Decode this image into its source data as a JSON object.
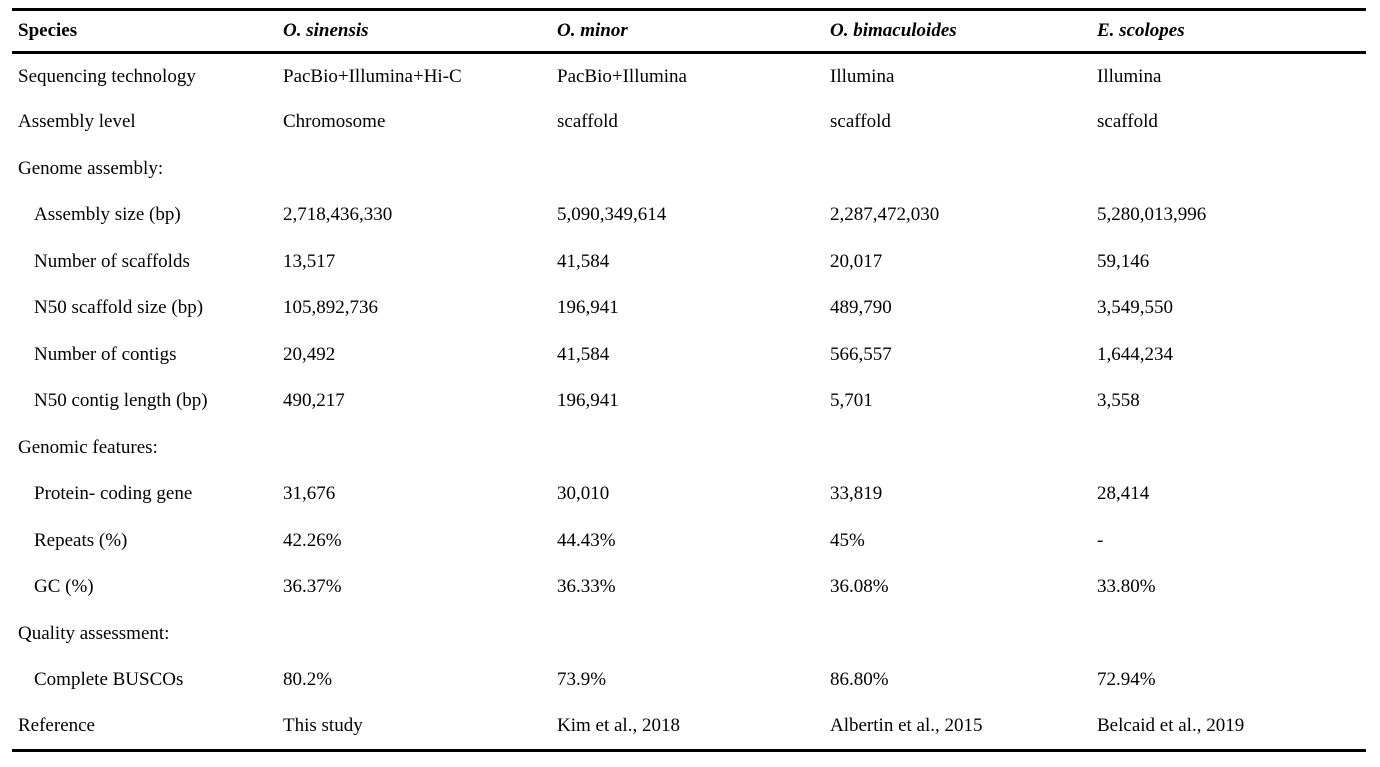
{
  "colors": {
    "text": "#000000",
    "background": "#ffffff",
    "rule": "#000000"
  },
  "table": {
    "columns": [
      "Species",
      "O. sinensis",
      "O. minor",
      "O. bimaculoides",
      "E. scolopes"
    ],
    "rows": [
      {
        "label": "Sequencing technology",
        "indent": false,
        "section": false,
        "values": [
          "PacBio+Illumina+Hi-C",
          "PacBio+Illumina",
          "Illumina",
          "Illumina"
        ]
      },
      {
        "label": "Assembly level",
        "indent": false,
        "section": false,
        "values": [
          "Chromosome",
          "scaffold",
          "scaffold",
          "scaffold"
        ]
      },
      {
        "label": "Genome assembly:",
        "indent": false,
        "section": true,
        "values": [
          "",
          "",
          "",
          ""
        ]
      },
      {
        "label": "Assembly size (bp)",
        "indent": true,
        "section": false,
        "values": [
          "2,718,436,330",
          "5,090,349,614",
          "2,287,472,030",
          "5,280,013,996"
        ]
      },
      {
        "label": "Number of scaffolds",
        "indent": true,
        "section": false,
        "values": [
          "13,517",
          "41,584",
          "20,017",
          "59,146"
        ]
      },
      {
        "label": "N50 scaffold size (bp)",
        "indent": true,
        "section": false,
        "values": [
          "105,892,736",
          "196,941",
          "489,790",
          "3,549,550"
        ]
      },
      {
        "label": "Number of contigs",
        "indent": true,
        "section": false,
        "values": [
          "20,492",
          "41,584",
          "566,557",
          "1,644,234"
        ]
      },
      {
        "label": "N50 contig length (bp)",
        "indent": true,
        "section": false,
        "values": [
          "490,217",
          "196,941",
          "5,701",
          "3,558"
        ]
      },
      {
        "label": "Genomic features:",
        "indent": false,
        "section": true,
        "values": [
          "",
          "",
          "",
          ""
        ]
      },
      {
        "label": "Protein- coding gene",
        "indent": true,
        "section": false,
        "values": [
          "31,676",
          "30,010",
          "33,819",
          "28,414"
        ]
      },
      {
        "label": "Repeats (%)",
        "indent": true,
        "section": false,
        "values": [
          "42.26%",
          "44.43%",
          "45%",
          "-"
        ]
      },
      {
        "label": "GC (%)",
        "indent": true,
        "section": false,
        "values": [
          "36.37%",
          "36.33%",
          "36.08%",
          "33.80%"
        ]
      },
      {
        "label": "Quality assessment:",
        "indent": false,
        "section": true,
        "values": [
          "",
          "",
          "",
          ""
        ]
      },
      {
        "label": "Complete BUSCOs",
        "indent": true,
        "section": false,
        "values": [
          "80.2%",
          "73.9%",
          "86.80%",
          "72.94%"
        ]
      },
      {
        "label": "Reference",
        "indent": false,
        "section": false,
        "values": [
          "This study",
          "Kim et al., 2018",
          "Albertin et al., 2015",
          "Belcaid et al., 2019"
        ]
      }
    ]
  }
}
